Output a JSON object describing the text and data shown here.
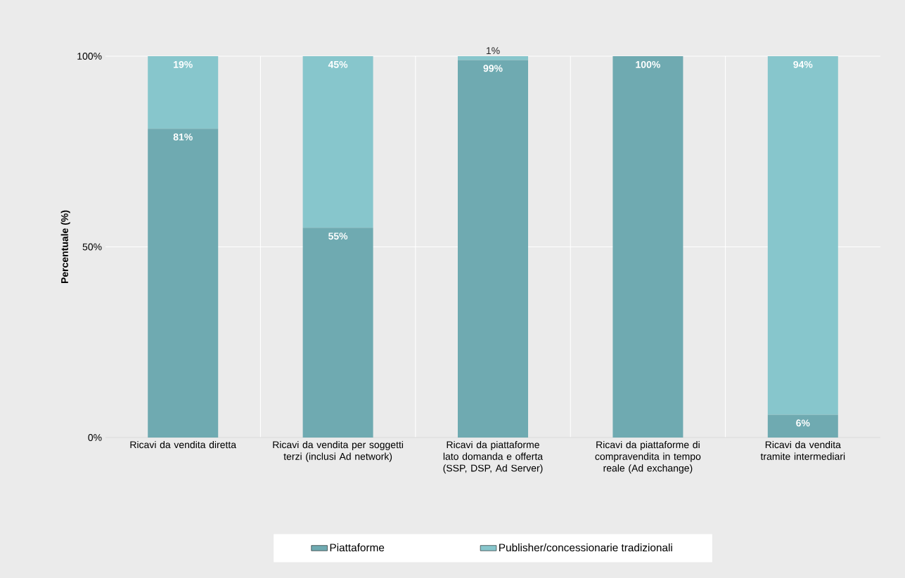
{
  "chart_data": {
    "type": "bar",
    "stacked": true,
    "ylabel": "Percentuale  (%)",
    "categories": [
      "Ricavi da vendita diretta",
      "Ricavi da vendita per soggetti terzi (inclusi Ad network)",
      "Ricavi da piattaforme lato domanda e offerta (SSP, DSP, Ad Server)",
      "Ricavi da piattaforme di compravendita in tempo reale (Ad exchange)",
      "Ricavi da vendita tramite intermediari"
    ],
    "series": [
      {
        "name": "Piattaforme",
        "color": "#6faab1",
        "values": [
          81,
          55,
          99,
          100,
          6
        ],
        "value_labels": [
          "81%",
          "55%",
          "99%",
          "100%",
          "6%"
        ]
      },
      {
        "name": "Publisher/concessionarie tradizionali",
        "color": "#87c6cc",
        "values": [
          19,
          45,
          1,
          0,
          94
        ],
        "value_labels": [
          "19%",
          "45%",
          "1%",
          null,
          "94%"
        ]
      }
    ],
    "ylim": [
      0,
      100
    ],
    "yticks": [
      {
        "value": 0,
        "label": "0%"
      },
      {
        "value": 50,
        "label": "50%"
      },
      {
        "value": 100,
        "label": "100%"
      }
    ],
    "grid": true,
    "legend": "bottom"
  }
}
